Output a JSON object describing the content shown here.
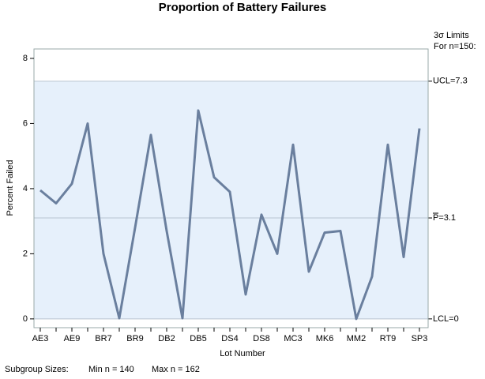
{
  "chart_data": {
    "type": "line",
    "title": "Proportion of Battery Failures",
    "x_label": "Lot Number",
    "y_label": "Percent Failed",
    "categories": [
      "AE3",
      null,
      "AE9",
      null,
      "BR7",
      null,
      "BR9",
      null,
      "DB2",
      null,
      "DB5",
      null,
      "DS4",
      null,
      "DS8",
      null,
      "MC3",
      null,
      "MK6",
      null,
      "MM2",
      null,
      "RT9",
      null,
      "SP3"
    ],
    "series": [
      {
        "color": "#6a7f9e",
        "values": [
          3.95,
          3.55,
          4.15,
          6.0,
          2.0,
          0.02,
          2.8,
          5.65,
          2.7,
          0.02,
          6.4,
          4.35,
          3.9,
          0.75,
          3.2,
          2.0,
          5.35,
          1.45,
          2.65,
          2.7,
          0.0,
          1.3,
          5.35,
          1.9,
          5.85
        ]
      }
    ],
    "ylim": [
      -0.27,
      8.29
    ],
    "yticks": [
      0,
      2,
      4,
      6,
      8
    ],
    "limits_heading": [
      "3σ Limits",
      "For n=150:"
    ],
    "limits": {
      "ucl": {
        "value": 7.3,
        "label": "UCL=7.3"
      },
      "center": {
        "value": 3.1,
        "label": "P=3.1"
      },
      "lcl": {
        "value": 0,
        "label": "LCL=0"
      }
    },
    "band_color": "#e6f0fb",
    "footer": [
      "Subgroup Sizes:",
      "Min n = 140",
      "Max n = 162"
    ]
  }
}
